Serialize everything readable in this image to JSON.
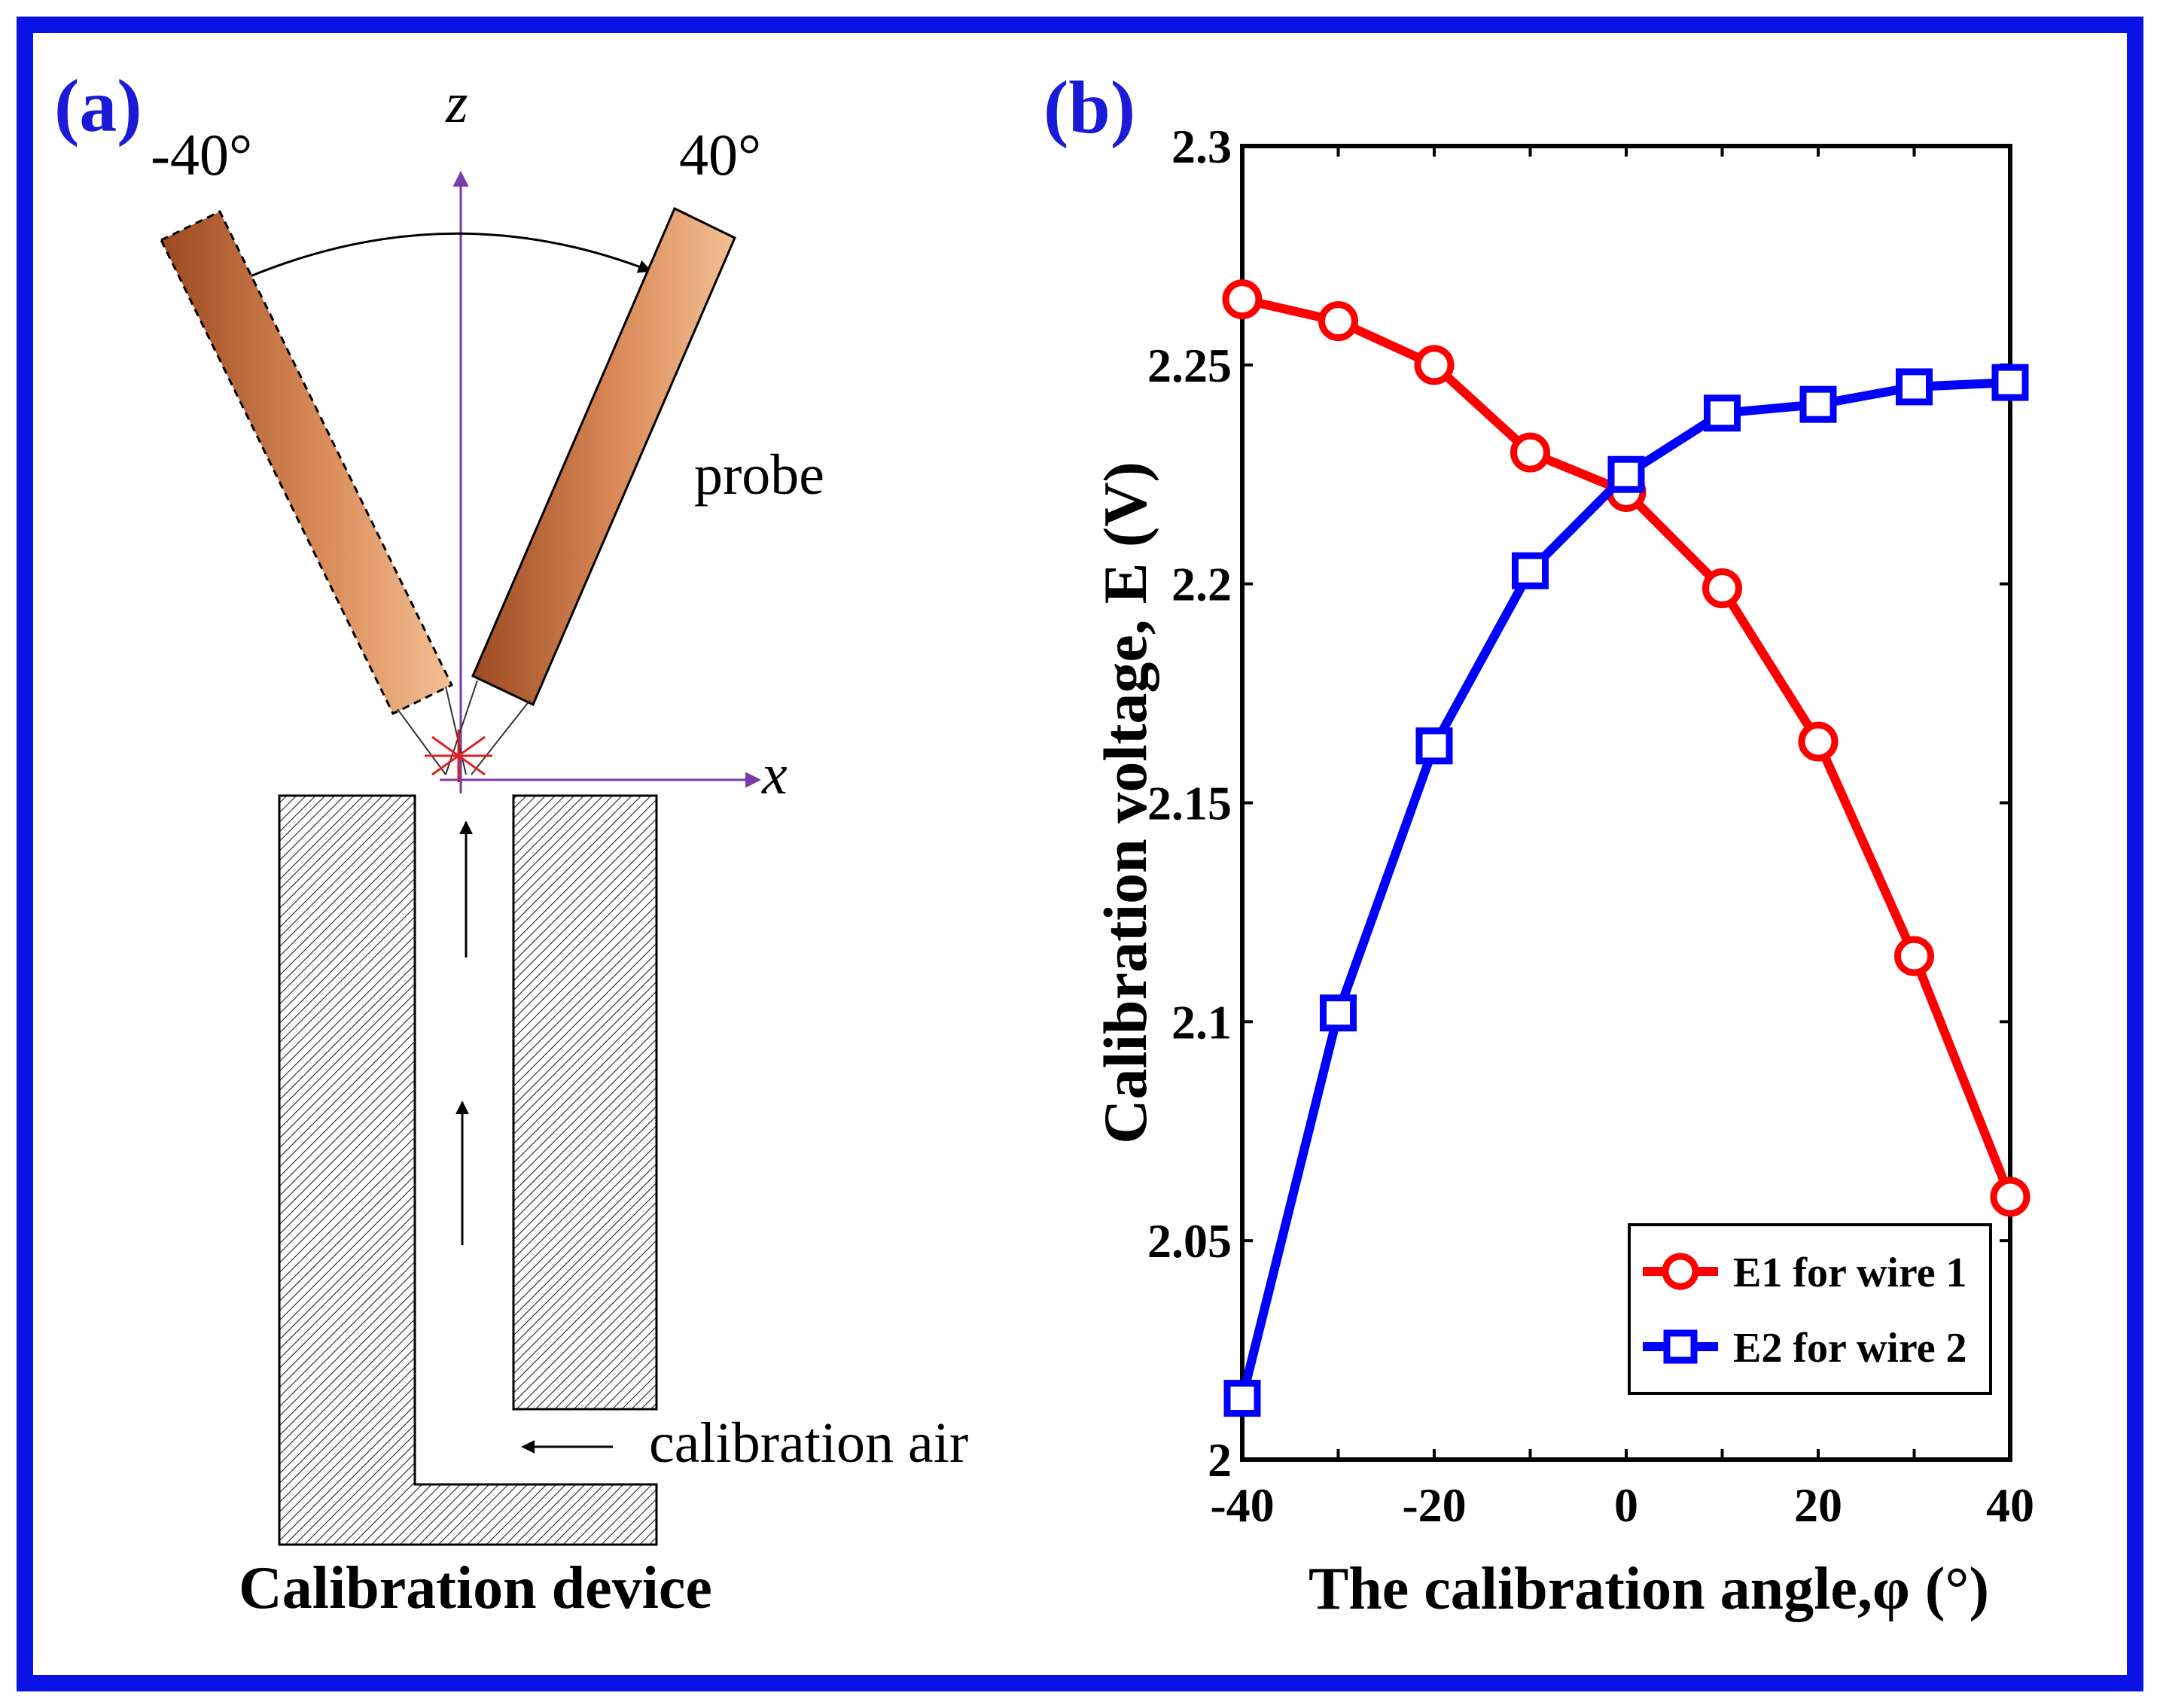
{
  "panel_a": {
    "label": "(a)",
    "angle_left": "-40°",
    "angle_right": "40°",
    "axis_z": "z",
    "axis_x": "x",
    "probe_label": "probe",
    "air_label": "calibration air",
    "device_label": "Calibration device"
  },
  "panel_b": {
    "label": "(b)"
  },
  "colors": {
    "frame": "#0a12e6",
    "panel_label": "#1a1ad8",
    "e1": "#ff0000",
    "e2": "#0000ff",
    "axis_arrow": "#7a3aa8",
    "probe_dark": "#a0522d",
    "probe_light": "#f0b080"
  },
  "chart_data": {
    "type": "line",
    "title": "",
    "xlabel": "The calibration angle,φ  (°)",
    "ylabel": "Calibration voltage, E (V)",
    "xlim": [
      -40,
      40
    ],
    "ylim": [
      2.0,
      2.3
    ],
    "xticks": [
      -40,
      -20,
      0,
      20,
      40
    ],
    "xtick_labels": [
      "-40",
      "-20",
      "0",
      "20",
      "40"
    ],
    "yticks": [
      2.0,
      2.05,
      2.1,
      2.15,
      2.2,
      2.25,
      2.3
    ],
    "ytick_labels": [
      "2",
      "2.05",
      "2.1",
      "2.15",
      "2.2",
      "2.25",
      "2.3"
    ],
    "grid": false,
    "legend_position": "bottom-right",
    "x": [
      -40,
      -30,
      -20,
      -10,
      0,
      10,
      20,
      30,
      40
    ],
    "series": [
      {
        "name": "E1 for wire 1",
        "marker": "circle",
        "color": "#ff0000",
        "values": [
          2.265,
          2.26,
          2.25,
          2.23,
          2.221,
          2.199,
          2.164,
          2.115,
          2.06
        ]
      },
      {
        "name": "E2 for wire 2",
        "marker": "square",
        "color": "#0000ff",
        "values": [
          2.014,
          2.102,
          2.163,
          2.203,
          2.225,
          2.239,
          2.241,
          2.245,
          2.246
        ]
      }
    ]
  }
}
